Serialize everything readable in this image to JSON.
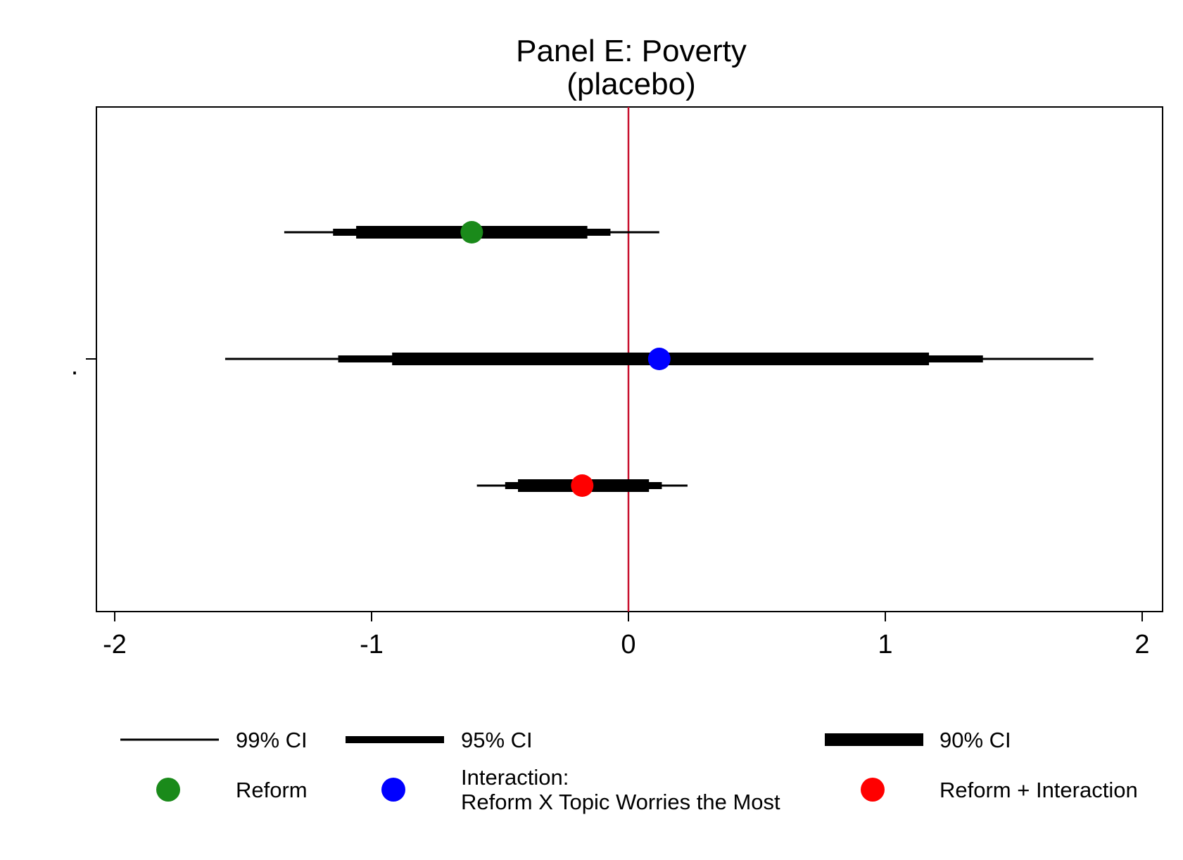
{
  "chart_data": {
    "type": "scatter",
    "title": "Panel E: Poverty",
    "subtitle": "(placebo)",
    "xlabel": "",
    "ylabel": "",
    "y_tick_label": ".",
    "xlim": [
      -2.08,
      2.08
    ],
    "xticks": [
      {
        "value": -2,
        "label": "-2"
      },
      {
        "value": -1,
        "label": "-1"
      },
      {
        "value": 0,
        "label": "0"
      },
      {
        "value": 1,
        "label": "1"
      },
      {
        "value": 2,
        "label": "2"
      }
    ],
    "reference_line": {
      "x": 0,
      "color": "#c8102e"
    },
    "grid": false,
    "series": [
      {
        "name": "Reform",
        "color": "#1a8a1a",
        "estimate": -0.61,
        "ci99": [
          -1.34,
          0.12
        ],
        "ci95": [
          -1.15,
          -0.07
        ],
        "ci90": [
          -1.06,
          -0.16
        ]
      },
      {
        "name": "Interaction: Reform X Topic Worries the Most",
        "color": "#0000ff",
        "estimate": 0.12,
        "ci99": [
          -1.57,
          1.81
        ],
        "ci95": [
          -1.13,
          1.38
        ],
        "ci90": [
          -0.92,
          1.17
        ]
      },
      {
        "name": "Reform + Interaction",
        "color": "#ff0000",
        "estimate": -0.18,
        "ci99": [
          -0.59,
          0.23
        ],
        "ci95": [
          -0.48,
          0.13
        ],
        "ci90": [
          -0.43,
          0.08
        ]
      }
    ],
    "legend": {
      "placement": "bottom",
      "ci_entries": [
        {
          "label": "99% CI",
          "key": "ci99"
        },
        {
          "label": "95% CI",
          "key": "ci95"
        },
        {
          "label": "90% CI",
          "key": "ci90"
        }
      ],
      "marker_entries": [
        {
          "lines": [
            "Reform"
          ],
          "color": "#1a8a1a"
        },
        {
          "lines": [
            "Interaction:",
            "Reform X Topic Worries the Most"
          ],
          "color": "#0000ff"
        },
        {
          "lines": [
            "Reform + Interaction"
          ],
          "color": "#ff0000"
        }
      ]
    }
  }
}
